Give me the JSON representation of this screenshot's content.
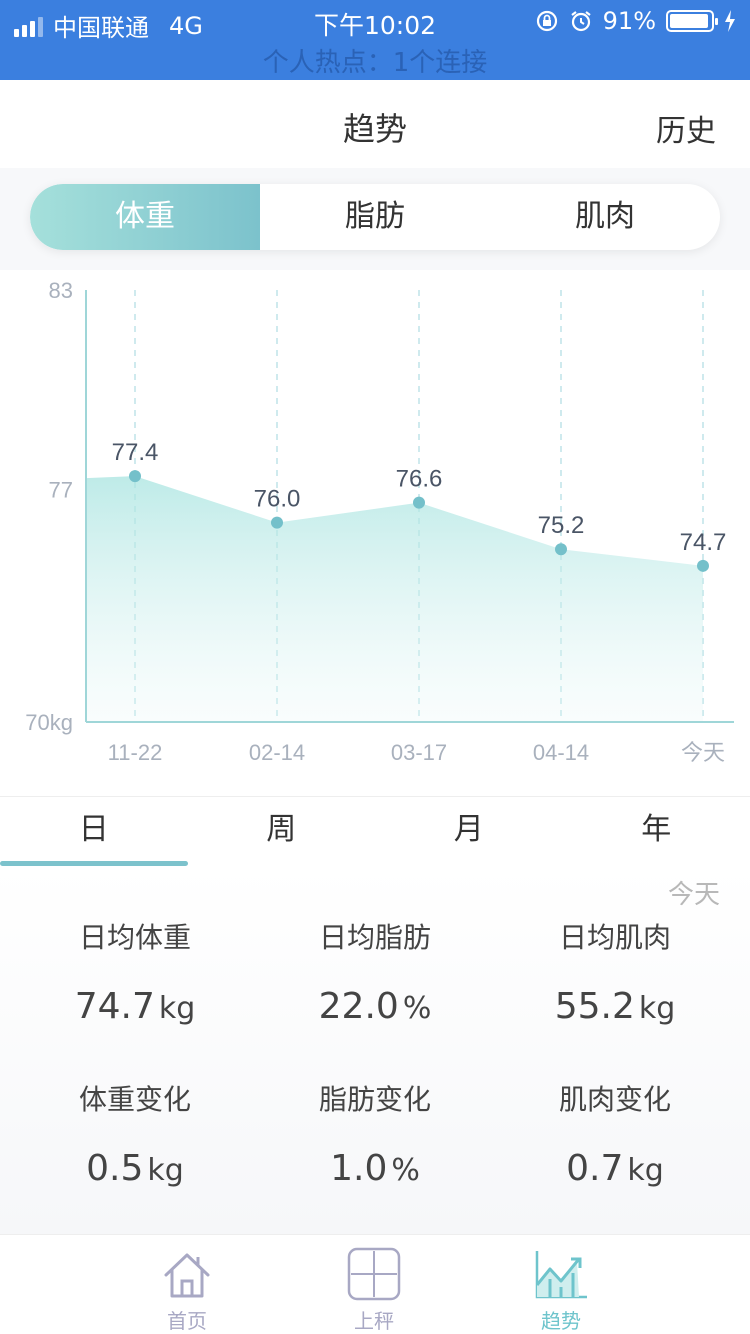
{
  "status_bar": {
    "carrier": "中国联通",
    "network": "4G",
    "time": "下午10:02",
    "battery": "91%",
    "hotspot": "个人热点：1个连接"
  },
  "nav": {
    "title": "趋势",
    "history": "历史"
  },
  "segment": {
    "items": [
      "体重",
      "脂肪",
      "肌肉"
    ],
    "active_index": 0
  },
  "chart_data": {
    "type": "area",
    "title": "",
    "x": [
      "11-22",
      "02-14",
      "03-17",
      "04-14",
      "今天"
    ],
    "values": [
      77.4,
      76.0,
      76.6,
      75.2,
      74.7
    ],
    "data_labels": [
      "77.4",
      "76.0",
      "76.6",
      "75.2",
      "74.7"
    ],
    "y_ticks": [
      "83",
      "77",
      "70kg"
    ],
    "y_tick_values": [
      83,
      77,
      70
    ],
    "ylim": [
      70,
      83
    ],
    "grid": "vertical-dashed",
    "series_color": "#74c0ca",
    "fill_color": "#a8e4e0"
  },
  "periods": {
    "items": [
      "日",
      "周",
      "月",
      "年"
    ],
    "active_index": 0
  },
  "stats": {
    "today_label": "今天",
    "items": [
      {
        "label": "日均体重",
        "value": "74.7",
        "unit": "kg"
      },
      {
        "label": "日均脂肪",
        "value": "22.0",
        "unit": "%"
      },
      {
        "label": "日均肌肉",
        "value": "55.2",
        "unit": "kg"
      },
      {
        "label": "体重变化",
        "value": "0.5",
        "unit": "kg"
      },
      {
        "label": "脂肪变化",
        "value": "1.0",
        "unit": "%"
      },
      {
        "label": "肌肉变化",
        "value": "0.7",
        "unit": "kg"
      }
    ]
  },
  "tabbar": {
    "items": [
      {
        "label": "首页",
        "icon": "home-icon"
      },
      {
        "label": "上秤",
        "icon": "scale-icon"
      },
      {
        "label": "趋势",
        "icon": "trend-icon"
      }
    ],
    "active_index": 2
  }
}
